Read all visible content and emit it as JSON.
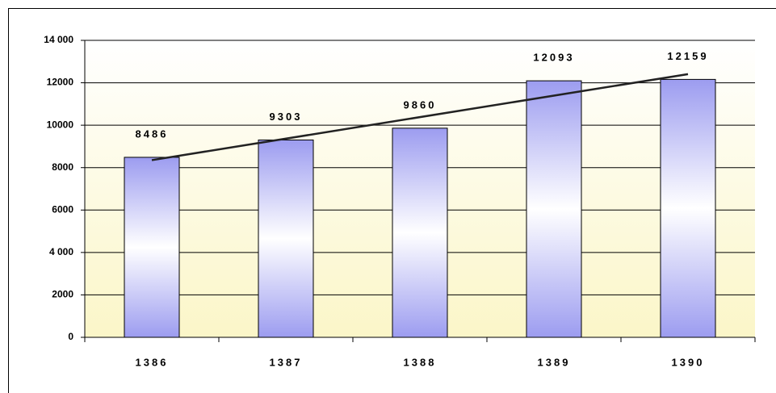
{
  "chart_data": {
    "type": "bar",
    "categories": [
      "1386",
      "1387",
      "1388",
      "1389",
      "1390"
    ],
    "values": [
      8486,
      9303,
      9860,
      12093,
      12159
    ],
    "ylim": [
      0,
      14000
    ],
    "yticks": [
      0,
      2000,
      {
        "value": 4000,
        "label": "4 000"
      },
      6000,
      8000,
      10000,
      12000,
      {
        "value": 14000,
        "label": "14 000"
      }
    ],
    "grid": true,
    "trendline": true
  }
}
